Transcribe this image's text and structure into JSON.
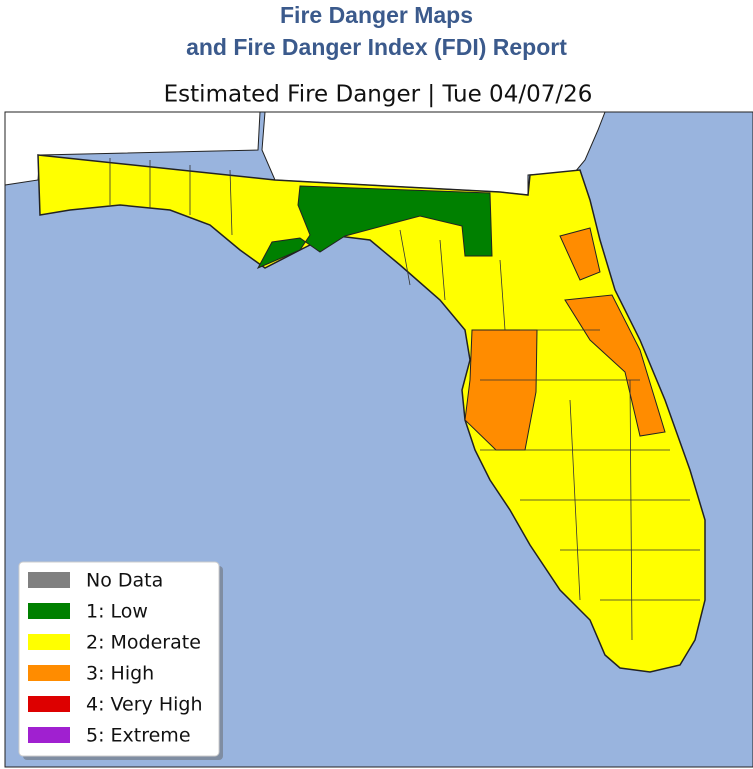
{
  "header": {
    "title_line1": "Fire Danger Maps",
    "title_line2": "and Fire Danger Index (FDI) Report"
  },
  "map": {
    "title": "Estimated Fire Danger | Tue 04/07/26",
    "legend": [
      {
        "label": "No Data",
        "color": "#808080"
      },
      {
        "label": "1: Low",
        "color": "#008000"
      },
      {
        "label": "2: Moderate",
        "color": "#ffff00"
      },
      {
        "label": "3: High",
        "color": "#ff8c00"
      },
      {
        "label": "4: Very High",
        "color": "#dd0000"
      },
      {
        "label": "5: Extreme",
        "color": "#a020d0"
      }
    ]
  }
}
